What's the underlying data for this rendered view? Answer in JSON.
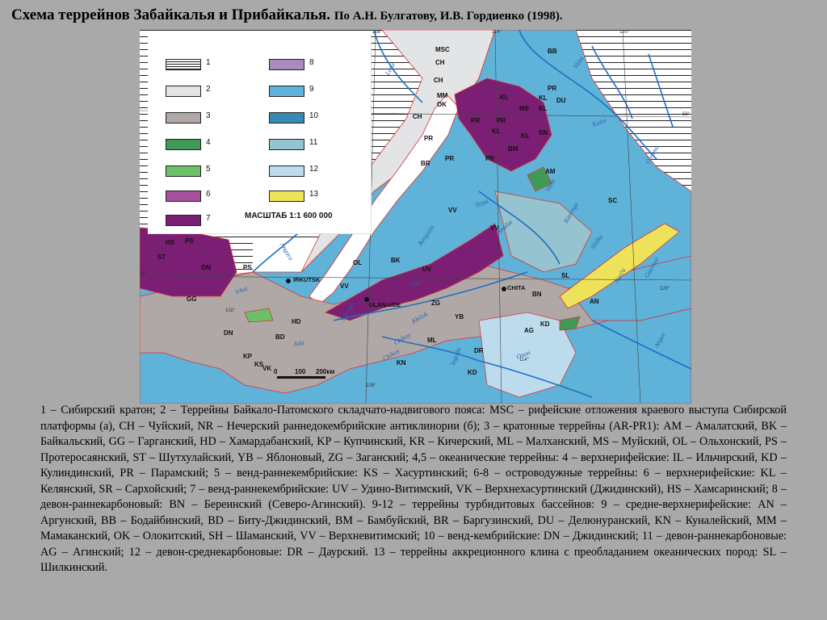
{
  "title": {
    "main": "Схема террейнов Забайкалья и Прибайкалья.",
    "sub": "По А.Н. Булгатову, И.В. Гордиенко (1998)."
  },
  "map": {
    "legend": {
      "items": [
        {
          "num": "1",
          "swatch": "hatch"
        },
        {
          "num": "2",
          "color": "#e2e4e6"
        },
        {
          "num": "3",
          "color": "#b0a8a6"
        },
        {
          "num": "4",
          "color": "#3f9a57"
        },
        {
          "num": "5",
          "color": "#6cc068"
        },
        {
          "num": "6",
          "color": "#a6519c"
        },
        {
          "num": "7",
          "color": "#7a1f74"
        },
        {
          "num": "8",
          "color": "#a98bbd"
        },
        {
          "num": "9",
          "color": "#5fb2d8"
        },
        {
          "num": "10",
          "color": "#3a88b4"
        },
        {
          "num": "11",
          "color": "#95c3cf"
        },
        {
          "num": "12",
          "color": "#bcdced"
        },
        {
          "num": "13",
          "color": "#eee25a"
        }
      ],
      "scale": "МАСШТАБ 1:1 600 000"
    },
    "terrain_labels": [
      "MSC",
      "CH",
      "BB",
      "CH",
      "MM",
      "OK",
      "CH",
      "KL",
      "PR",
      "PR",
      "KL",
      "MS",
      "KL",
      "DU",
      "PR",
      "SN",
      "KL",
      "BM",
      "KL",
      "PR",
      "BR",
      "PR",
      "PR",
      "AM",
      "SC",
      "VV",
      "VV",
      "HS",
      "PS",
      "ST",
      "ON",
      "PS",
      "OL",
      "BK",
      "UV",
      "SL",
      "BN",
      "GG",
      "VV",
      "ZG",
      "YB",
      "AN",
      "HD",
      "KD",
      "AG",
      "DN",
      "BD",
      "ML",
      "KP",
      "KS",
      "VK",
      "KN",
      "DR",
      "KD"
    ],
    "cities": [
      "IRKUTSK",
      "ULAN-UDE",
      "CHITA"
    ],
    "rivers": [
      "Lena",
      "Vitim",
      "Kalar",
      "Olekma",
      "Angara",
      "Barguzin",
      "Tsipa",
      "Amalat",
      "Vitim",
      "Karenga",
      "Nerča",
      "Gazimur",
      "Argun",
      "Irkut",
      "Selenga",
      "Uda",
      "Khilok",
      "Chikoy",
      "Jida",
      "Ingoda",
      "Onon",
      "Shilka",
      "Chikoy"
    ],
    "coords": [
      "108°",
      "114°",
      "120°",
      "56°",
      "52°",
      "102°",
      "120°",
      "114°",
      "108°"
    ],
    "scalebar": {
      "t0": "0",
      "t1": "100",
      "t2": "200км"
    }
  },
  "caption": "1 – Сибирский кратон; 2 – Террейны Байкало-Патомского складчато-надвигового пояса: MSC – рифейские отложения краевого выступа Сибирской платформы (а), CH – Чуйский, NR – Нечерский раннедокембрийские антиклинории (б); 3 – кратонные террейны (AR-PR1): AM – Амалатский, BK – Байкальский, GG – Гарганский, HD – Хамардабанский, KP – Купчинский, KR – Кичерский, ML – Малханский, MS – Муйский, OL – Ольхонский, PS – Протеросаянский, ST – Шутхулайский, YB – Яблоновый, ZG – Заганский; 4,5 – океанические террейны: 4 – верхнерифейские: IL – Ильчирский, KD – Кулиндинский, PR – Парамский; 5 – венд-раннекембрийские: KS – Хасуртинский; 6-8 – островодужные террейны: 6 – верхнерифейские: KL – Келянский, SR – Сархойский; 7 – венд-раннекембрийские: UV – Удино-Витимский, VK – Верхнехасуртинский (Джидинский), HS – Хамсаринский; 8 – девон-раннекарбоновый: BN – Береинский (Северо-Агинский). 9-12 – террейны турбидитовых бассейнов: 9 – средне-верхнерифейские: AN – Аргунский, BB – Бодайбинский, BD – Биту-Джидинский, BM – Бамбуйский, BR – Баргузинский, DU – Делюнуранский, KN – Куналейский, MM – Мамаканский, OK – Олокитский, SH – Шаманский, VV – Верхневитимский; 10 – венд-кембрийские: DN – Джидинский; 11 – девон-раннекарбоновые: AG – Агинский; 12 – девон-среднекарбоновые: DR – Даурский. 13 – террейны аккреционного клина с преобладанием океанических пород: SL – Шилкинский."
}
